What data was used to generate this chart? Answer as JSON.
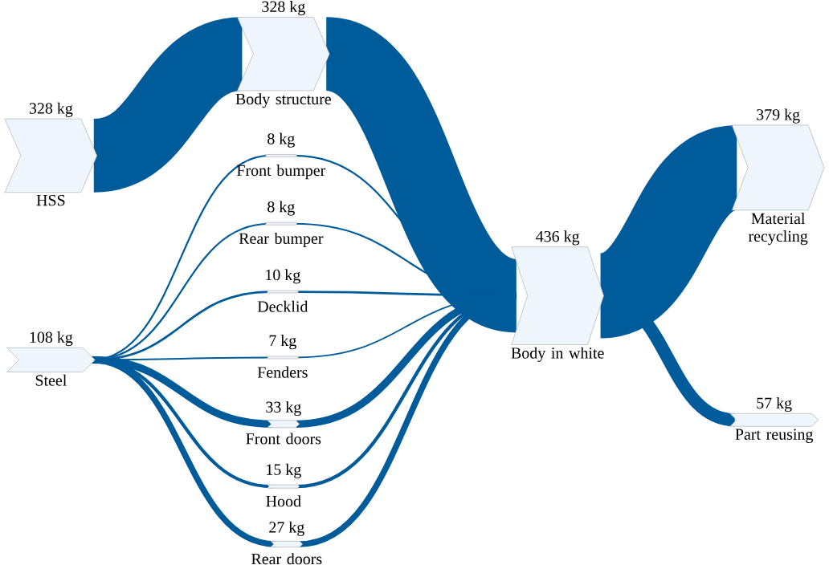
{
  "chart_data": {
    "type": "other",
    "categories": [
      "HSS",
      "Body structure",
      "Steel",
      "Front bumper",
      "Rear bumper",
      "Decklid",
      "Fenders",
      "Front doors",
      "Hood",
      "Rear doors",
      "Body in white",
      "Material recycling",
      "Part reusing"
    ],
    "values": [
      328,
      328,
      108,
      8,
      8,
      10,
      7,
      33,
      15,
      27,
      436,
      379,
      57
    ],
    "value_labels": [
      "328 kg",
      "328 kg",
      "108 kg",
      "8 kg",
      "8 kg",
      "10 kg",
      "7 kg",
      "33 kg",
      "15 kg",
      "27 kg",
      "436 kg",
      "379 kg",
      "57 kg"
    ],
    "color": "#005b9a",
    "colors": [
      "#eef5fc",
      "#eef5fc",
      "#eef5fc",
      "#eef5fc",
      "#eef5fc",
      "#eef5fc",
      "#eef5fc",
      "#eef5fc",
      "#eef5fc",
      "#eef5fc",
      "#eef5fc",
      "#eef5fc",
      "#eef5fc"
    ]
  }
}
